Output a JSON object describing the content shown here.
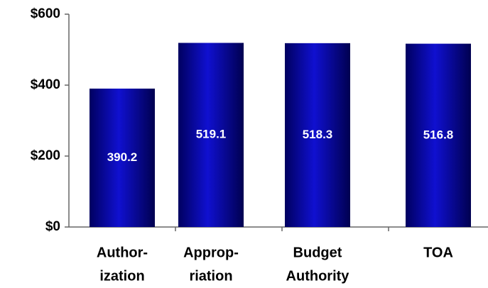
{
  "chart_data": {
    "type": "bar",
    "categories": [
      [
        "Author-",
        "ization"
      ],
      [
        "Approp-",
        "riation"
      ],
      [
        "Budget",
        "Authority"
      ],
      [
        "TOA"
      ]
    ],
    "values": [
      390.2,
      519.1,
      518.3,
      516.8
    ],
    "color": "#1010d0",
    "ylim": [
      0,
      600
    ],
    "yticks": [
      {
        "value": 0,
        "label": "$0"
      },
      {
        "value": 200,
        "label": "$200"
      },
      {
        "value": 400,
        "label": "$400"
      },
      {
        "value": 600,
        "label": "$600"
      }
    ]
  }
}
